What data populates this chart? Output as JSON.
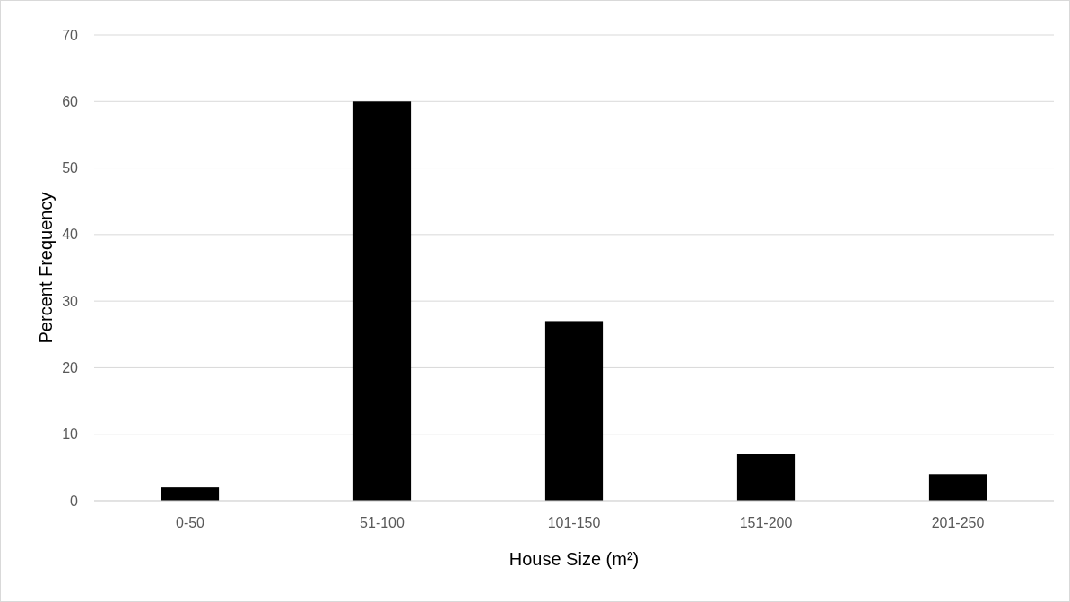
{
  "chart_data": {
    "type": "bar",
    "xlabel": "House Size (m²)",
    "ylabel": "Percent Frequency",
    "categories": [
      "0-50",
      "51-100",
      "101-150",
      "151-200",
      "201-250"
    ],
    "values": [
      2,
      60,
      27,
      7,
      4
    ],
    "color": "#000000",
    "ylim": [
      0,
      70
    ],
    "yticks": [
      0,
      10,
      20,
      30,
      40,
      50,
      60,
      70
    ],
    "grid": "y"
  }
}
